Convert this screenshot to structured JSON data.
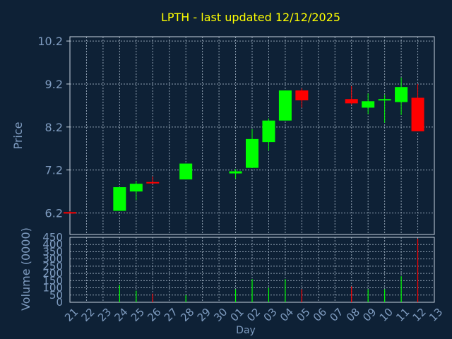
{
  "chart_data": [
    {
      "type": "candlestick",
      "title": "LPTH - last updated 12/12/2025",
      "ylabel": "Price",
      "ylim": [
        5.7,
        10.3
      ],
      "yticks": [
        "6.2",
        "7.2",
        "8.2",
        "9.2",
        "10.2"
      ],
      "grid": true,
      "up_color": "#00ff00",
      "down_color": "#ff0000",
      "categories": [
        "21",
        "22",
        "23",
        "24",
        "25",
        "26",
        "27",
        "28",
        "29",
        "30",
        "01",
        "02",
        "03",
        "04",
        "05",
        "06",
        "07",
        "08",
        "09",
        "10",
        "11",
        "12",
        "13"
      ],
      "candles": [
        {
          "x": "21",
          "open": 6.22,
          "high": 6.24,
          "low": 6.2,
          "close": 6.2
        },
        {
          "x": "24",
          "open": 6.25,
          "high": 6.8,
          "low": 6.25,
          "close": 6.8
        },
        {
          "x": "25",
          "open": 6.7,
          "high": 6.95,
          "low": 6.5,
          "close": 6.88
        },
        {
          "x": "26",
          "open": 6.92,
          "high": 7.05,
          "low": 6.88,
          "close": 6.9
        },
        {
          "x": "28",
          "open": 6.98,
          "high": 7.35,
          "low": 6.98,
          "close": 7.35
        },
        {
          "x": "01",
          "open": 7.12,
          "high": 7.22,
          "low": 7.0,
          "close": 7.17
        },
        {
          "x": "02",
          "open": 7.25,
          "high": 8.15,
          "low": 7.25,
          "close": 7.92
        },
        {
          "x": "03",
          "open": 7.85,
          "high": 8.4,
          "low": 7.65,
          "close": 8.35
        },
        {
          "x": "04",
          "open": 8.35,
          "high": 9.05,
          "low": 8.35,
          "close": 9.05
        },
        {
          "x": "05",
          "open": 9.05,
          "high": 9.1,
          "low": 8.65,
          "close": 8.82
        },
        {
          "x": "08",
          "open": 8.85,
          "high": 9.15,
          "low": 8.72,
          "close": 8.75
        },
        {
          "x": "09",
          "open": 8.65,
          "high": 8.98,
          "low": 8.5,
          "close": 8.8
        },
        {
          "x": "10",
          "open": 8.82,
          "high": 8.95,
          "low": 8.3,
          "close": 8.85
        },
        {
          "x": "11",
          "open": 8.78,
          "high": 9.35,
          "low": 8.48,
          "close": 9.13
        },
        {
          "x": "12",
          "open": 8.88,
          "high": 9.2,
          "low": 8.1,
          "close": 8.1
        }
      ]
    },
    {
      "type": "bar",
      "ylabel": "Volume (0000)",
      "xlabel": "Day",
      "ylim": [
        0,
        450
      ],
      "yticks": [
        "0",
        "50",
        "100",
        "150",
        "200",
        "250",
        "300",
        "350",
        "400",
        "450"
      ],
      "grid": true,
      "bars": [
        {
          "x": "24",
          "value": 120,
          "color": "#00ff00"
        },
        {
          "x": "25",
          "value": 80,
          "color": "#00ff00"
        },
        {
          "x": "26",
          "value": 60,
          "color": "#ff0000"
        },
        {
          "x": "28",
          "value": 50,
          "color": "#00ff00"
        },
        {
          "x": "01",
          "value": 90,
          "color": "#00ff00"
        },
        {
          "x": "02",
          "value": 160,
          "color": "#00ff00"
        },
        {
          "x": "03",
          "value": 100,
          "color": "#00ff00"
        },
        {
          "x": "04",
          "value": 160,
          "color": "#00ff00"
        },
        {
          "x": "05",
          "value": 90,
          "color": "#ff0000"
        },
        {
          "x": "08",
          "value": 110,
          "color": "#ff0000"
        },
        {
          "x": "09",
          "value": 90,
          "color": "#00ff00"
        },
        {
          "x": "10",
          "value": 90,
          "color": "#00ff00"
        },
        {
          "x": "11",
          "value": 180,
          "color": "#00ff00"
        },
        {
          "x": "12",
          "value": 440,
          "color": "#ff0000"
        }
      ]
    }
  ]
}
